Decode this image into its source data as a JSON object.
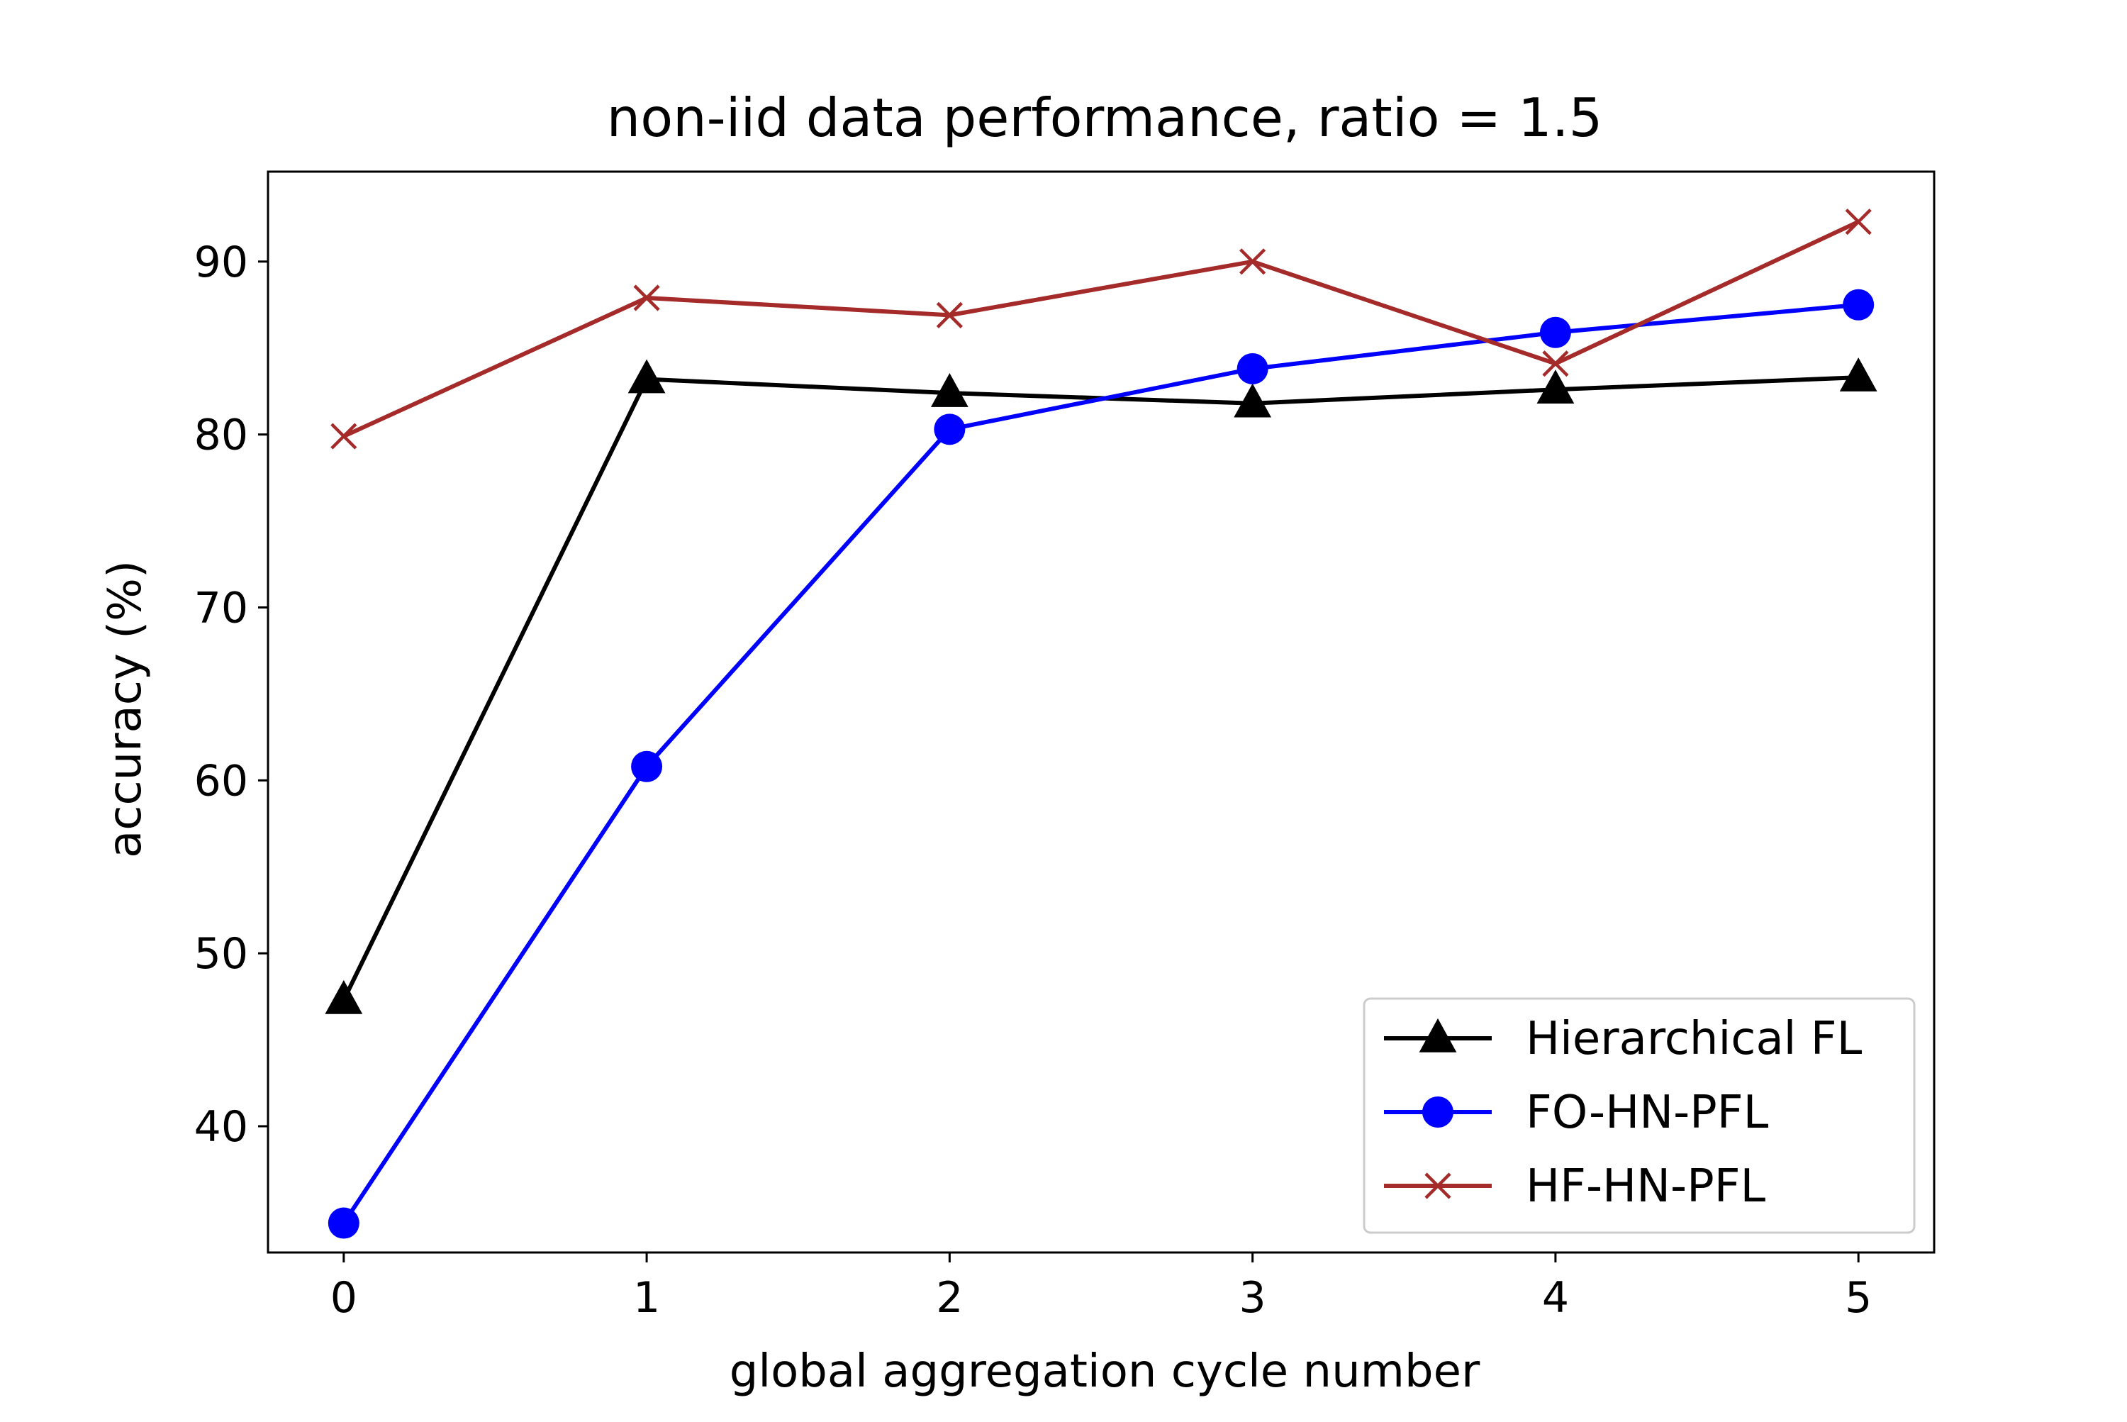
{
  "chart_data": {
    "type": "line",
    "title": "non-iid data performance, ratio = 1.5",
    "xlabel": "global aggregation cycle number",
    "ylabel": "accuracy (%)",
    "x": [
      0,
      1,
      2,
      3,
      4,
      5
    ],
    "xlim": [
      -0.25,
      5.25
    ],
    "ylim": [
      32.7,
      95.2
    ],
    "xticks": [
      0,
      1,
      2,
      3,
      4,
      5
    ],
    "yticks": [
      40,
      50,
      60,
      70,
      80,
      90
    ],
    "grid": false,
    "legend_position": "lower-right",
    "series": [
      {
        "name": "Hierarchical FL",
        "color": "#000000",
        "marker": "triangle",
        "values": [
          47.3,
          83.2,
          82.4,
          81.8,
          82.6,
          83.3
        ]
      },
      {
        "name": "FO-HN-PFL",
        "color": "#0000ff",
        "marker": "circle",
        "values": [
          34.4,
          60.8,
          80.3,
          83.8,
          85.9,
          87.5
        ]
      },
      {
        "name": "HF-HN-PFL",
        "color": "#a52a2a",
        "marker": "x",
        "values": [
          79.9,
          87.9,
          86.9,
          90.0,
          84.1,
          92.3
        ]
      }
    ]
  }
}
